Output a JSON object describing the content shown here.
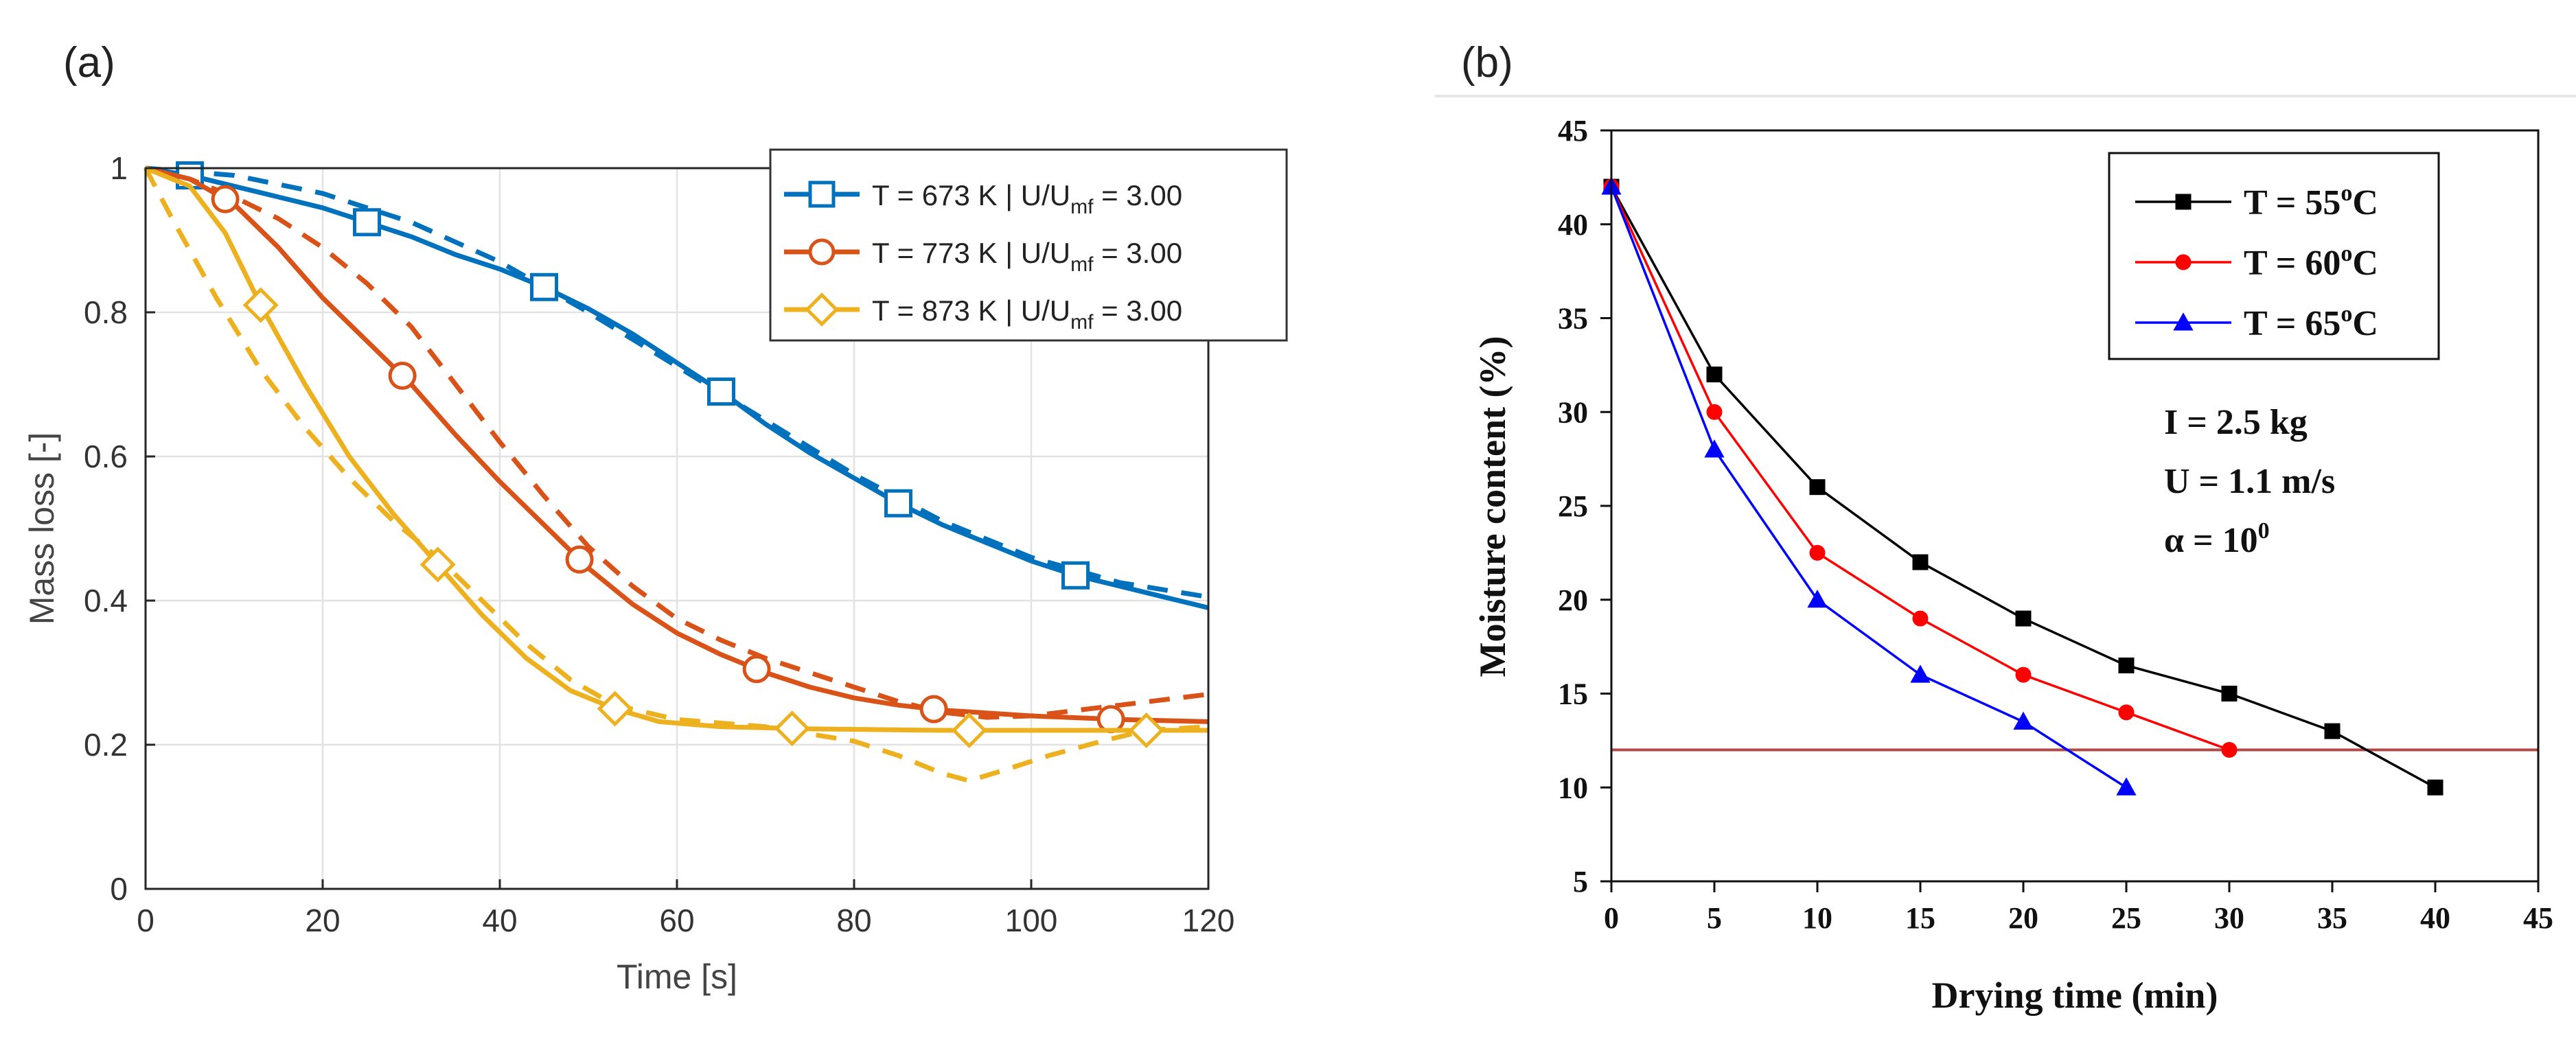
{
  "chart_data": [
    {
      "panel_label": "(a)",
      "type": "line",
      "xlabel": "Time [s]",
      "ylabel": "Mass loss [-]",
      "xlim": [
        0,
        120
      ],
      "ylim": [
        0,
        1
      ],
      "xticks": [
        "0",
        "20",
        "40",
        "60",
        "80",
        "100",
        "120"
      ],
      "yticks": [
        "0",
        "0.2",
        "0.4",
        "0.6",
        "0.8",
        "1"
      ],
      "grid": true,
      "legend_position": "top-right",
      "series": [
        {
          "name": "T = 673 K | U/U",
          "name_sub": "mf",
          "name_suffix": " = 3.00",
          "color": "#0072BD",
          "marker": "square",
          "solid": [
            [
              0,
              1.0
            ],
            [
              5,
              0.99
            ],
            [
              10,
              0.975
            ],
            [
              15,
              0.96
            ],
            [
              20,
              0.945
            ],
            [
              25,
              0.925
            ],
            [
              30,
              0.905
            ],
            [
              35,
              0.88
            ],
            [
              40,
              0.86
            ],
            [
              45,
              0.835
            ],
            [
              50,
              0.805
            ],
            [
              55,
              0.77
            ],
            [
              60,
              0.73
            ],
            [
              65,
              0.69
            ],
            [
              70,
              0.645
            ],
            [
              75,
              0.605
            ],
            [
              80,
              0.57
            ],
            [
              85,
              0.535
            ],
            [
              90,
              0.505
            ],
            [
              95,
              0.48
            ],
            [
              100,
              0.455
            ],
            [
              105,
              0.435
            ],
            [
              110,
              0.42
            ],
            [
              115,
              0.405
            ],
            [
              120,
              0.39
            ]
          ],
          "dashed": [
            [
              0,
              1.0
            ],
            [
              10,
              0.99
            ],
            [
              20,
              0.965
            ],
            [
              30,
              0.925
            ],
            [
              40,
              0.87
            ],
            [
              50,
              0.8
            ],
            [
              60,
              0.725
            ],
            [
              70,
              0.65
            ],
            [
              80,
              0.575
            ],
            [
              90,
              0.51
            ],
            [
              100,
              0.46
            ],
            [
              110,
              0.425
            ],
            [
              120,
              0.405
            ]
          ],
          "markers_x": [
            5,
            25,
            45,
            65,
            85,
            105
          ]
        },
        {
          "name": "T = 773 K | U/U",
          "name_sub": "mf",
          "name_suffix": " = 3.00",
          "color": "#D95319",
          "marker": "circle",
          "solid": [
            [
              0,
              1.0
            ],
            [
              5,
              0.985
            ],
            [
              10,
              0.95
            ],
            [
              15,
              0.89
            ],
            [
              20,
              0.82
            ],
            [
              25,
              0.76
            ],
            [
              30,
              0.7
            ],
            [
              35,
              0.63
            ],
            [
              40,
              0.565
            ],
            [
              45,
              0.505
            ],
            [
              50,
              0.445
            ],
            [
              55,
              0.395
            ],
            [
              60,
              0.355
            ],
            [
              65,
              0.325
            ],
            [
              70,
              0.3
            ],
            [
              75,
              0.28
            ],
            [
              80,
              0.265
            ],
            [
              85,
              0.255
            ],
            [
              90,
              0.248
            ],
            [
              100,
              0.24
            ],
            [
              110,
              0.235
            ],
            [
              120,
              0.232
            ]
          ],
          "dashed": [
            [
              0,
              1.0
            ],
            [
              5,
              0.985
            ],
            [
              10,
              0.96
            ],
            [
              15,
              0.93
            ],
            [
              20,
              0.89
            ],
            [
              25,
              0.84
            ],
            [
              30,
              0.78
            ],
            [
              35,
              0.7
            ],
            [
              40,
              0.62
            ],
            [
              45,
              0.545
            ],
            [
              50,
              0.475
            ],
            [
              55,
              0.42
            ],
            [
              60,
              0.375
            ],
            [
              65,
              0.345
            ],
            [
              70,
              0.32
            ],
            [
              75,
              0.3
            ],
            [
              80,
              0.28
            ],
            [
              85,
              0.26
            ],
            [
              90,
              0.245
            ],
            [
              95,
              0.238
            ],
            [
              100,
              0.24
            ],
            [
              110,
              0.255
            ],
            [
              120,
              0.27
            ]
          ],
          "markers_x": [
            9,
            29,
            49,
            69,
            89,
            109
          ]
        },
        {
          "name": "T = 873 K | U/U",
          "name_sub": "mf",
          "name_suffix": " = 3.00",
          "color": "#EDB120",
          "marker": "diamond",
          "solid": [
            [
              0,
              1.0
            ],
            [
              5,
              0.975
            ],
            [
              9,
              0.91
            ],
            [
              13,
              0.81
            ],
            [
              18,
              0.7
            ],
            [
              23,
              0.6
            ],
            [
              28,
              0.52
            ],
            [
              33,
              0.45
            ],
            [
              38,
              0.38
            ],
            [
              43,
              0.32
            ],
            [
              48,
              0.275
            ],
            [
              53,
              0.25
            ],
            [
              58,
              0.232
            ],
            [
              65,
              0.225
            ],
            [
              75,
              0.222
            ],
            [
              90,
              0.22
            ],
            [
              120,
              0.22
            ]
          ],
          "dashed": [
            [
              0,
              1.0
            ],
            [
              3,
              0.93
            ],
            [
              8,
              0.82
            ],
            [
              13,
              0.72
            ],
            [
              18,
              0.64
            ],
            [
              23,
              0.57
            ],
            [
              28,
              0.51
            ],
            [
              33,
              0.46
            ],
            [
              38,
              0.4
            ],
            [
              43,
              0.34
            ],
            [
              48,
              0.29
            ],
            [
              53,
              0.255
            ],
            [
              60,
              0.235
            ],
            [
              70,
              0.225
            ],
            [
              80,
              0.205
            ],
            [
              85,
              0.185
            ],
            [
              90,
              0.16
            ],
            [
              93,
              0.15
            ],
            [
              97,
              0.165
            ],
            [
              102,
              0.185
            ],
            [
              108,
              0.205
            ],
            [
              113,
              0.22
            ],
            [
              120,
              0.225
            ]
          ],
          "markers_x": [
            13,
            33,
            53,
            73,
            93,
            113
          ]
        }
      ]
    },
    {
      "panel_label": "(b)",
      "type": "line",
      "xlabel": "Drying time (min)",
      "ylabel": "Moisture content (%)",
      "xlim": [
        0,
        45
      ],
      "ylim": [
        5,
        45
      ],
      "xticks": [
        "0",
        "5",
        "10",
        "15",
        "20",
        "25",
        "30",
        "35",
        "40",
        "45"
      ],
      "yticks": [
        "5",
        "10",
        "15",
        "20",
        "25",
        "30",
        "35",
        "40",
        "45"
      ],
      "grid": false,
      "legend_position": "top-right",
      "reference_line_y": 12,
      "reference_line_color": "#B04848",
      "annotations": [
        {
          "text": "I = 2.5 kg"
        },
        {
          "text": "U = 1.1 m/s"
        },
        {
          "text": "α = 10",
          "sup": "0"
        }
      ],
      "series": [
        {
          "name": "T = 55",
          "name_sup": "o",
          "name_suffix": "C",
          "color": "#000000",
          "marker": "square",
          "x": [
            0,
            5,
            10,
            15,
            20,
            25,
            30,
            35,
            40
          ],
          "y": [
            42,
            32,
            26,
            22,
            19,
            16.5,
            15,
            13,
            10
          ]
        },
        {
          "name": "T = 60",
          "name_sup": "o",
          "name_suffix": "C",
          "color": "#FF0000",
          "marker": "circle",
          "x": [
            0,
            5,
            10,
            15,
            20,
            25,
            30
          ],
          "y": [
            42,
            30,
            22.5,
            19,
            16,
            14,
            12
          ]
        },
        {
          "name": "T = 65",
          "name_sup": "o",
          "name_suffix": "C",
          "color": "#0000FF",
          "marker": "triangle",
          "x": [
            0,
            5,
            10,
            15,
            20,
            25
          ],
          "y": [
            42,
            28,
            20,
            16,
            13.5,
            10
          ]
        }
      ]
    }
  ]
}
